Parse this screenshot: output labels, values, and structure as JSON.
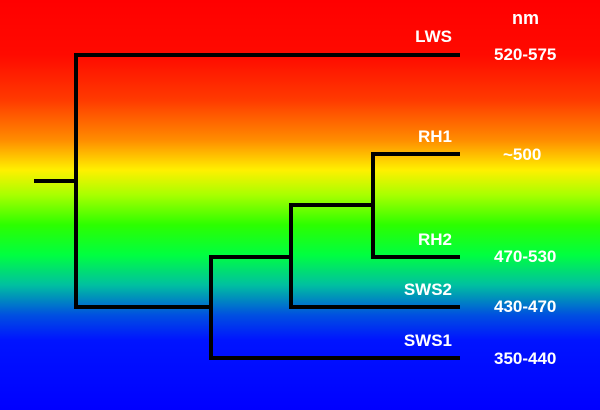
{
  "unit_header": "nm",
  "leaves": [
    {
      "id": "lws",
      "label": "LWS",
      "range": "520-575"
    },
    {
      "id": "rh1",
      "label": "RH1",
      "range": "~500"
    },
    {
      "id": "rh2",
      "label": "RH2",
      "range": "470-530"
    },
    {
      "id": "sws2",
      "label": "SWS2",
      "range": "430-470"
    },
    {
      "id": "sws1",
      "label": "SWS1",
      "range": "350-440"
    }
  ],
  "background_gradient": [
    "#ff0000",
    "#ff8c00",
    "#fff000",
    "#2cff00",
    "#0050e0",
    "#0000ff"
  ],
  "branch_color": "#000000",
  "text_color": "#ffffff"
}
